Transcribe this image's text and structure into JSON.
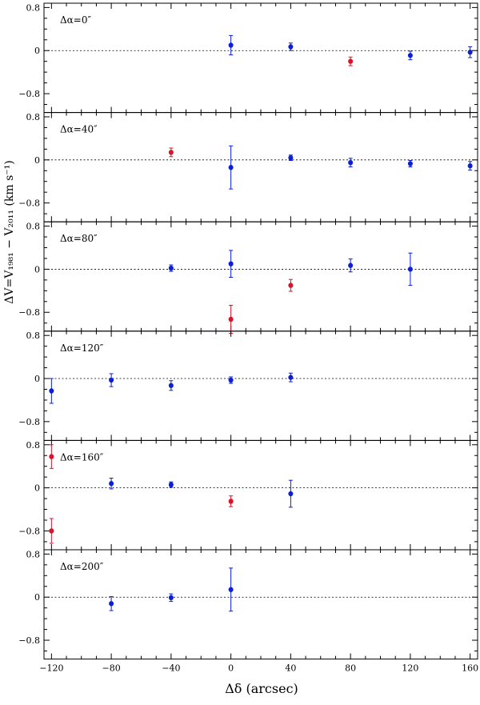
{
  "figure": {
    "xlabel": "Δδ (arcsec)",
    "ylabel": "ΔV=V₁₉₈₁ − V₂₀₁₁ (km s⁻¹)"
  },
  "colors": {
    "normal": "#0b1fd6",
    "highlight": "#d8142a",
    "axis": "#000000"
  },
  "chart_data": {
    "type": "scatter",
    "xlabel": "Δδ (arcsec)",
    "ylabel": "ΔV=V₁₉₈₁ − V₂₀₁₁ (km s⁻¹)",
    "xlim": [
      -125,
      165
    ],
    "ylim": [
      -1.15,
      0.88
    ],
    "x_ticks": [
      -120,
      -80,
      -40,
      0,
      40,
      80,
      120,
      160
    ],
    "x_tick_labels": [
      "−120",
      "−80",
      "−40",
      "0",
      "40",
      "80",
      "120",
      "160"
    ],
    "y_ticks": [
      -0.8,
      0,
      0.8
    ],
    "y_tick_labels": [
      "−0.8",
      "0",
      "0.8"
    ],
    "grid": false,
    "reference_line": 0,
    "panels": [
      {
        "label": "Δα=0″",
        "points": [
          {
            "x": 0,
            "y": 0.1,
            "err": 0.18,
            "flag": "normal"
          },
          {
            "x": 40,
            "y": 0.07,
            "err": 0.07,
            "flag": "normal"
          },
          {
            "x": 80,
            "y": -0.2,
            "err": 0.08,
            "flag": "highlight"
          },
          {
            "x": 120,
            "y": -0.09,
            "err": 0.08,
            "flag": "normal"
          },
          {
            "x": 160,
            "y": -0.03,
            "err": 0.1,
            "flag": "normal"
          }
        ]
      },
      {
        "label": "Δα=40″",
        "points": [
          {
            "x": -40,
            "y": 0.14,
            "err": 0.08,
            "flag": "highlight"
          },
          {
            "x": 0,
            "y": -0.14,
            "err": 0.4,
            "flag": "normal"
          },
          {
            "x": 40,
            "y": 0.04,
            "err": 0.05,
            "flag": "normal"
          },
          {
            "x": 80,
            "y": -0.05,
            "err": 0.08,
            "flag": "normal"
          },
          {
            "x": 120,
            "y": -0.07,
            "err": 0.06,
            "flag": "normal"
          },
          {
            "x": 160,
            "y": -0.11,
            "err": 0.08,
            "flag": "normal"
          }
        ]
      },
      {
        "label": "Δα=80″",
        "points": [
          {
            "x": -40,
            "y": 0.02,
            "err": 0.06,
            "flag": "normal"
          },
          {
            "x": 0,
            "y": 0.1,
            "err": 0.25,
            "flag": "normal"
          },
          {
            "x": 40,
            "y": -0.3,
            "err": 0.11,
            "flag": "highlight"
          },
          {
            "x": 80,
            "y": 0.07,
            "err": 0.12,
            "flag": "normal"
          },
          {
            "x": 120,
            "y": 0.0,
            "err": 0.3,
            "flag": "normal"
          },
          {
            "x": 0,
            "y": -0.93,
            "err": 0.26,
            "flag": "highlight"
          }
        ]
      },
      {
        "label": "Δα=120″",
        "points": [
          {
            "x": -120,
            "y": -0.23,
            "err": 0.23,
            "flag": "normal"
          },
          {
            "x": -80,
            "y": -0.03,
            "err": 0.12,
            "flag": "normal"
          },
          {
            "x": -40,
            "y": -0.13,
            "err": 0.09,
            "flag": "normal"
          },
          {
            "x": 0,
            "y": -0.03,
            "err": 0.06,
            "flag": "normal"
          },
          {
            "x": 40,
            "y": 0.02,
            "err": 0.08,
            "flag": "normal"
          }
        ]
      },
      {
        "label": "Δα=160″",
        "points": [
          {
            "x": -120,
            "y": 0.58,
            "err": 0.22,
            "flag": "highlight"
          },
          {
            "x": -120,
            "y": -0.8,
            "err": 0.23,
            "flag": "highlight"
          },
          {
            "x": -80,
            "y": 0.08,
            "err": 0.1,
            "flag": "normal"
          },
          {
            "x": -40,
            "y": 0.06,
            "err": 0.05,
            "flag": "normal"
          },
          {
            "x": 0,
            "y": -0.25,
            "err": 0.1,
            "flag": "highlight"
          },
          {
            "x": 40,
            "y": -0.11,
            "err": 0.25,
            "flag": "normal"
          }
        ]
      },
      {
        "label": "Δα=200″",
        "points": [
          {
            "x": -80,
            "y": -0.12,
            "err": 0.13,
            "flag": "normal"
          },
          {
            "x": -40,
            "y": -0.01,
            "err": 0.07,
            "flag": "normal"
          },
          {
            "x": 0,
            "y": 0.14,
            "err": 0.4,
            "flag": "normal"
          }
        ]
      }
    ]
  }
}
